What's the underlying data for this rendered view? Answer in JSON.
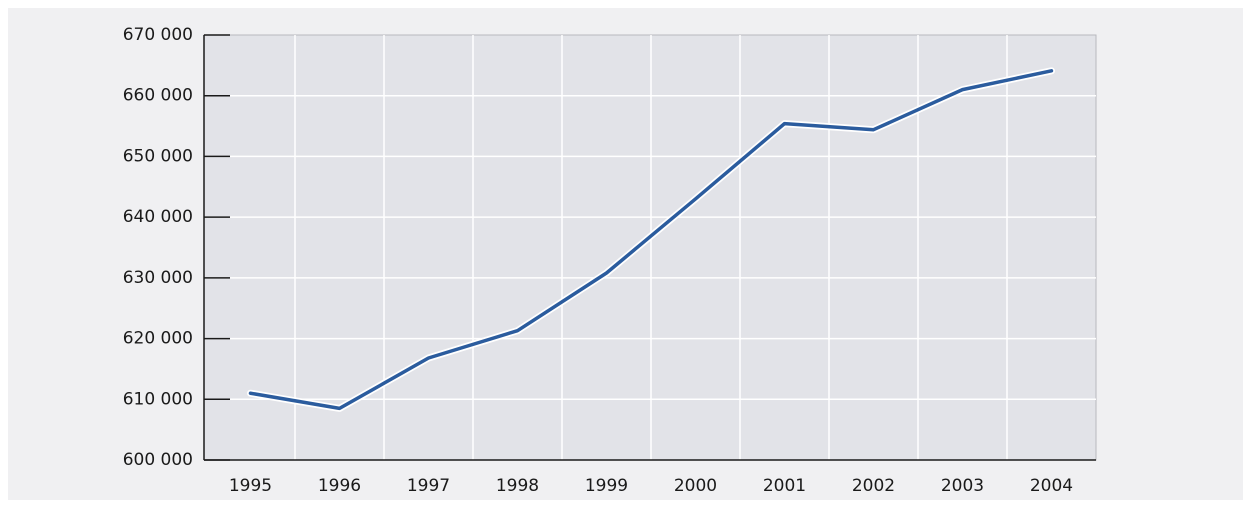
{
  "chart_data": {
    "type": "line",
    "categories": [
      "1995",
      "1996",
      "1997",
      "1998",
      "1999",
      "2000",
      "2001",
      "2002",
      "2003",
      "2004"
    ],
    "series": [
      {
        "color": "#2b5c9e",
        "values": [
          611000,
          608500,
          616800,
          621300,
          630800,
          643000,
          655400,
          654400,
          661000,
          664100
        ]
      }
    ],
    "ylim": [
      600000,
      670000
    ],
    "yticks": [
      {
        "value": 600000,
        "label": "600 000"
      },
      {
        "value": 610000,
        "label": "610 000"
      },
      {
        "value": 620000,
        "label": "620 000"
      },
      {
        "value": 630000,
        "label": "630 000"
      },
      {
        "value": 640000,
        "label": "640 000"
      },
      {
        "value": 650000,
        "label": "650 000"
      },
      {
        "value": 660000,
        "label": "660 000"
      },
      {
        "value": 670000,
        "label": "670 000"
      }
    ],
    "grid": true
  }
}
